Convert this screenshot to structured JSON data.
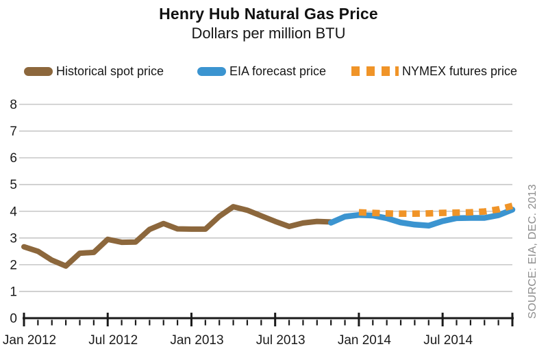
{
  "header": {
    "title": "Henry Hub Natural Gas Price",
    "subtitle": "Dollars per million BTU"
  },
  "legend": [
    {
      "label": "Historical spot price",
      "color": "#8C673C",
      "style": "solid"
    },
    {
      "label": "EIA forecast price",
      "color": "#3B94D0",
      "style": "solid"
    },
    {
      "label": "NYMEX futures price",
      "color": "#F09428",
      "style": "dashed"
    }
  ],
  "source_note": "SOURCE: EIA, DEC. 2013",
  "chart_data": {
    "type": "line",
    "title": "Henry Hub Natural Gas Price",
    "subtitle": "Dollars per million BTU",
    "xlabel": "",
    "ylabel": "Dollars per million BTU",
    "ylim": [
      0,
      8
    ],
    "yticks": [
      0,
      1,
      2,
      3,
      4,
      5,
      6,
      7,
      8
    ],
    "grid": "horizontal",
    "legend_position": "top",
    "x_tick_labels": [
      "Jan 2012",
      "Jul 2012",
      "Jan 2013",
      "Jul 2013",
      "Jan 2014",
      "Jul 2014"
    ],
    "months": [
      "2012-01",
      "2012-02",
      "2012-03",
      "2012-04",
      "2012-05",
      "2012-06",
      "2012-07",
      "2012-08",
      "2012-09",
      "2012-10",
      "2012-11",
      "2012-12",
      "2013-01",
      "2013-02",
      "2013-03",
      "2013-04",
      "2013-05",
      "2013-06",
      "2013-07",
      "2013-08",
      "2013-09",
      "2013-10",
      "2013-11",
      "2013-12",
      "2014-01",
      "2014-02",
      "2014-03",
      "2014-04",
      "2014-05",
      "2014-06",
      "2014-07",
      "2014-08",
      "2014-09",
      "2014-10",
      "2014-11",
      "2014-12"
    ],
    "colors": {
      "grid": "#c6c6c6",
      "axis": "#1a1a1a",
      "text": "#1a1a1a",
      "source": "#8d8d8d"
    },
    "series": [
      {
        "name": "Historical spot price",
        "data_name": "historical-spot-price-line",
        "color": "#8C673C",
        "line_style": "solid",
        "start_month": "2012-01",
        "values": [
          2.67,
          2.5,
          2.17,
          1.95,
          2.43,
          2.46,
          2.95,
          2.84,
          2.85,
          3.32,
          3.54,
          3.34,
          3.33,
          3.33,
          3.81,
          4.17,
          4.04,
          3.83,
          3.62,
          3.43,
          3.56,
          3.62,
          3.6
        ]
      },
      {
        "name": "EIA forecast price",
        "data_name": "eia-forecast-price-line",
        "color": "#3B94D0",
        "line_style": "solid",
        "start_month": "2013-11",
        "values": [
          3.57,
          3.8,
          3.86,
          3.84,
          3.74,
          3.58,
          3.5,
          3.46,
          3.63,
          3.74,
          3.75,
          3.75,
          3.85,
          4.06
        ]
      },
      {
        "name": "NYMEX futures price",
        "data_name": "nymex-futures-price-line",
        "color": "#F09428",
        "line_style": "dashed",
        "start_month": "2014-01",
        "values": [
          3.96,
          3.94,
          3.92,
          3.91,
          3.91,
          3.92,
          3.94,
          3.95,
          3.96,
          3.99,
          4.07,
          4.2
        ]
      }
    ]
  }
}
